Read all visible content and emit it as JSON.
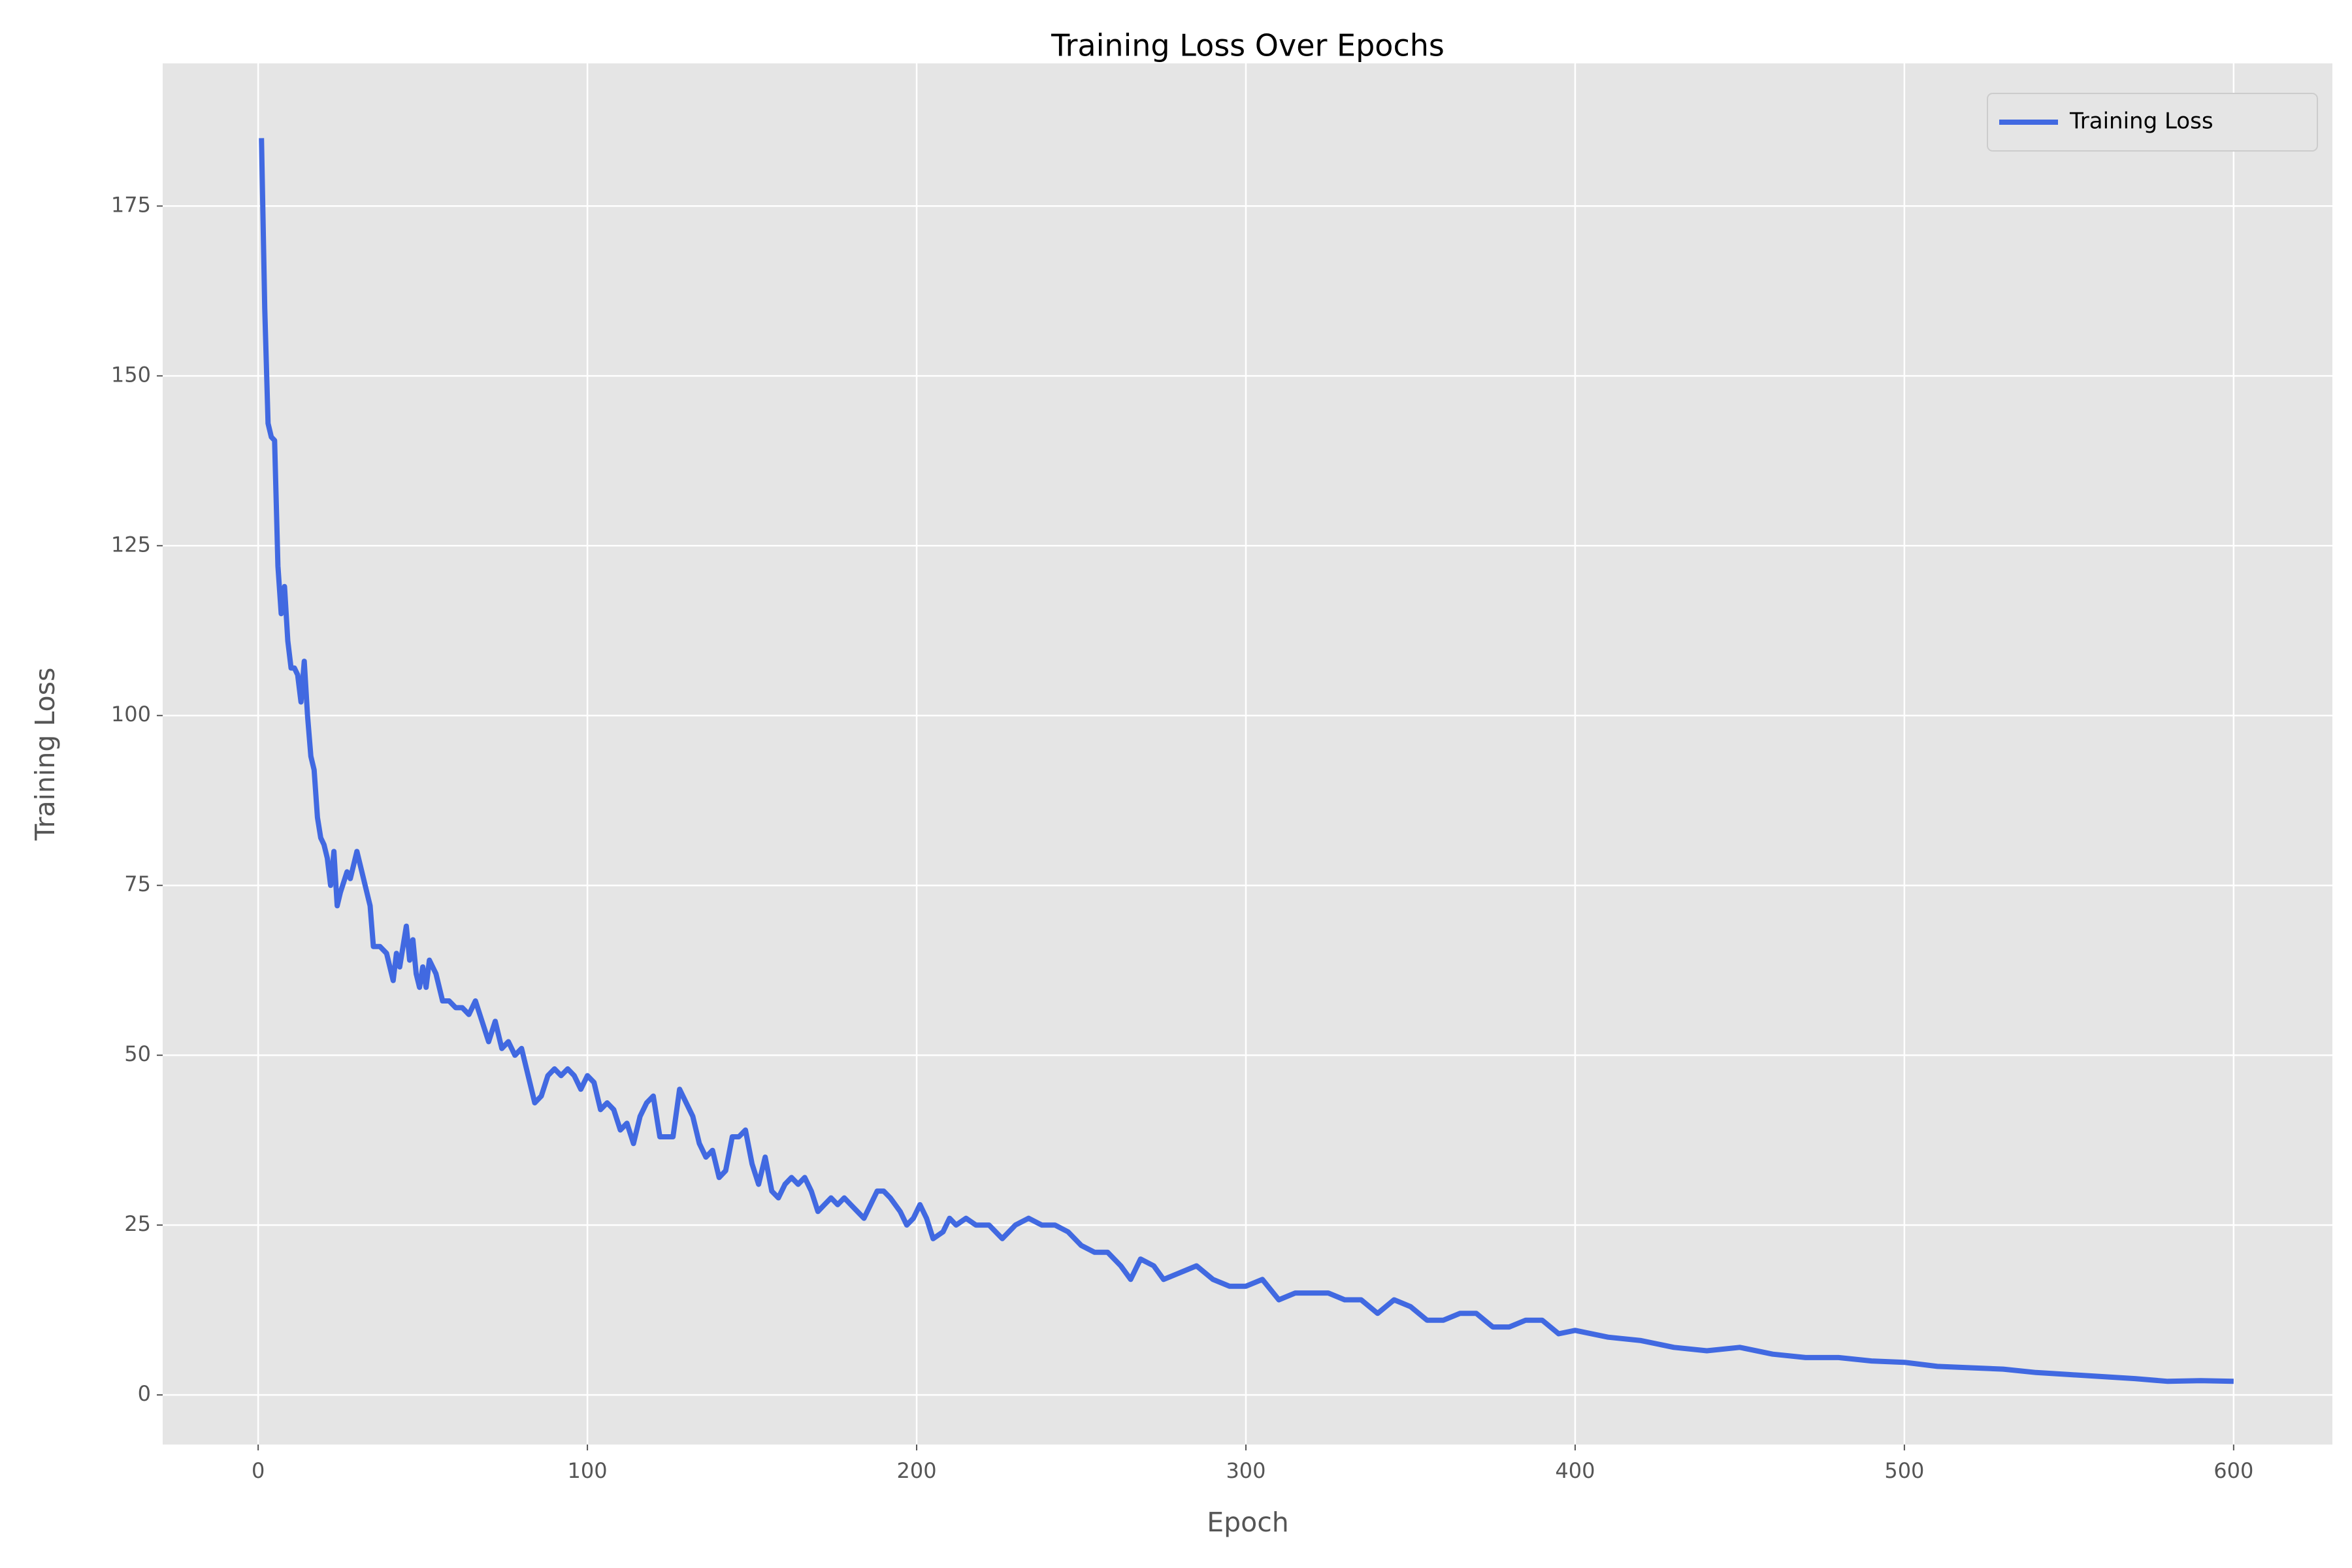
{
  "chart_data": {
    "type": "line",
    "title": "Training Loss Over Epochs",
    "x_label": "Epoch",
    "y_label": "Training Loss",
    "legend": "upper right",
    "grid": true,
    "xlim": [
      -29,
      630
    ],
    "ylim": [
      -7.3,
      196
    ],
    "xticks": [
      0,
      100,
      200,
      300,
      400,
      500,
      600
    ],
    "yticks": [
      0,
      25,
      50,
      75,
      100,
      125,
      150,
      175
    ],
    "x": [
      1,
      2,
      3,
      4,
      5,
      6,
      7,
      8,
      9,
      10,
      11,
      12,
      13,
      14,
      15,
      16,
      17,
      18,
      19,
      20,
      21,
      22,
      23,
      24,
      25,
      27,
      28,
      30,
      32,
      34,
      35,
      37,
      39,
      41,
      42,
      43,
      45,
      46,
      47,
      48,
      49,
      50,
      51,
      52,
      54,
      56,
      58,
      60,
      62,
      64,
      66,
      68,
      70,
      72,
      74,
      76,
      78,
      80,
      82,
      84,
      86,
      88,
      90,
      92,
      94,
      96,
      98,
      100,
      102,
      104,
      106,
      108,
      110,
      112,
      114,
      116,
      118,
      120,
      122,
      124,
      126,
      128,
      130,
      132,
      134,
      136,
      138,
      140,
      142,
      144,
      146,
      148,
      150,
      152,
      154,
      156,
      158,
      160,
      162,
      164,
      166,
      168,
      170,
      172,
      174,
      176,
      178,
      180,
      182,
      184,
      186,
      188,
      190,
      192,
      195,
      197,
      199,
      201,
      203,
      205,
      208,
      210,
      212,
      215,
      218,
      222,
      226,
      230,
      234,
      238,
      242,
      246,
      250,
      254,
      258,
      262,
      265,
      268,
      272,
      275,
      280,
      285,
      290,
      295,
      300,
      305,
      310,
      315,
      320,
      325,
      330,
      335,
      340,
      345,
      350,
      355,
      360,
      365,
      370,
      375,
      380,
      385,
      390,
      395,
      400,
      410,
      420,
      430,
      440,
      450,
      460,
      470,
      480,
      490,
      500,
      510,
      520,
      530,
      540,
      550,
      560,
      570,
      580,
      590,
      600
    ],
    "series": [
      {
        "name": "Training Loss",
        "color": "#4169e1",
        "values": [
          185,
          160,
          143,
          141,
          140.5,
          122,
          115,
          119,
          111,
          107,
          107,
          106,
          102,
          108,
          100,
          94,
          92,
          85,
          82,
          81,
          79,
          75,
          80,
          72,
          74,
          77,
          76,
          80,
          76,
          72,
          66,
          66,
          65,
          61,
          65,
          63,
          69,
          64,
          67,
          62,
          60,
          63,
          60,
          64,
          62,
          58,
          58,
          57,
          57,
          56,
          58,
          55,
          52,
          55,
          51,
          52,
          50,
          51,
          47,
          43,
          44,
          47,
          48,
          47,
          48,
          47,
          45,
          47,
          46,
          42,
          43,
          42,
          39,
          40,
          37,
          41,
          43,
          44,
          38,
          38,
          38,
          45,
          43,
          41,
          37,
          35,
          36,
          32,
          33,
          38,
          38,
          39,
          34,
          31,
          35,
          30,
          29,
          31,
          32,
          31,
          32,
          30,
          27,
          28,
          29,
          28,
          29,
          28,
          27,
          26,
          28,
          30,
          30,
          29,
          27,
          25,
          26,
          28,
          26,
          23,
          24,
          26,
          25,
          26,
          25,
          25,
          23,
          25,
          26,
          25,
          25,
          24,
          22,
          21,
          21,
          19,
          17,
          20,
          19,
          17,
          18,
          19,
          17,
          16,
          16,
          17,
          14,
          15,
          15,
          15,
          14,
          14,
          12,
          14,
          13,
          11,
          11,
          12,
          12,
          10,
          10,
          11,
          11,
          9,
          9.5,
          8.5,
          8,
          7,
          6.5,
          7,
          6,
          5.5,
          5.5,
          5,
          4.8,
          4.2,
          4,
          3.8,
          3.3,
          3,
          2.7,
          2.4,
          2,
          2.1,
          2
        ]
      }
    ]
  }
}
